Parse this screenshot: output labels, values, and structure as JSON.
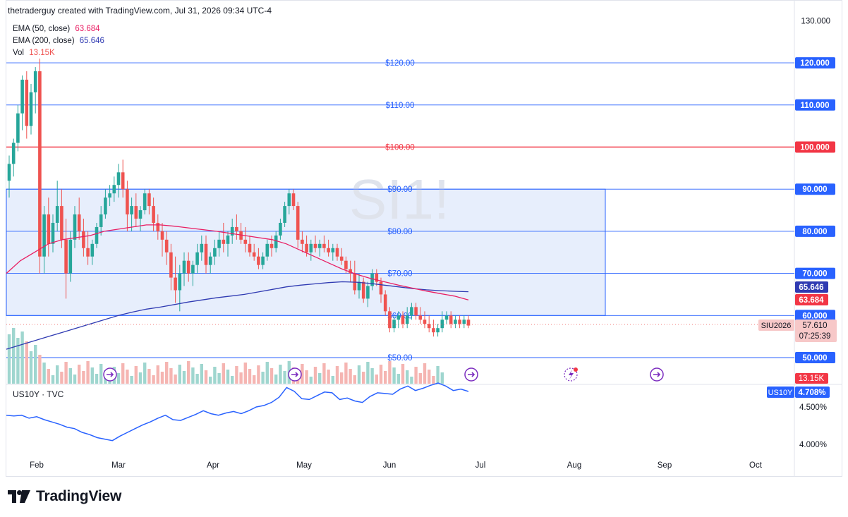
{
  "header": {
    "credit": "thetraderguy created with TradingView.com, Jul 31, 2026 09:34 UTC-4"
  },
  "watermark": "SI1!",
  "legend": {
    "ema50_label": "EMA (50, close)",
    "ema50_value": "63.684",
    "ema200_label": "EMA (200, close)",
    "ema200_value": "65.646",
    "vol_label": "Vol",
    "vol_value": "13.15K"
  },
  "sub_pane": {
    "legend": "US10Y · TVC",
    "symbol": "US10Y",
    "badge_value": "4.708%"
  },
  "price_badge": {
    "symbol": "SIU2026",
    "value": "57.610",
    "countdown": "07:25:39"
  },
  "footer": {
    "brand": "TradingView"
  },
  "colors": {
    "up": "#26a69a",
    "down": "#ef5350",
    "ema50": "#e91e63",
    "ema200": "#2f3ab2",
    "hline": "#2962ff",
    "red_line": "#f23645",
    "box_fill": "#e7eefc",
    "box_border": "#2962ff"
  },
  "chart_data": [
    {
      "type": "candlestick",
      "title": "SI1!",
      "x_axis": {
        "tick_labels": [
          "Feb",
          "Mar",
          "Apr",
          "May",
          "Jun",
          "Jul",
          "Aug",
          "Sep",
          "Oct"
        ]
      },
      "y_axis": {
        "tick_labels": [
          "130.000",
          "120.000",
          "110.000",
          "100.000",
          "90.000",
          "80.000",
          "70.000",
          "60.000",
          "50.000"
        ],
        "range": [
          47.5,
          130
        ]
      },
      "horizontal_levels": [
        {
          "value": 120,
          "label": "$120.00",
          "color": "#2962ff"
        },
        {
          "value": 110,
          "label": "$110.00",
          "color": "#2962ff"
        },
        {
          "value": 100,
          "label": "$100.00",
          "color": "#f23645"
        },
        {
          "value": 90,
          "label": "$90.00",
          "color": "#2962ff"
        },
        {
          "value": 80,
          "label": "$80.00",
          "color": "#2962ff"
        },
        {
          "value": 70,
          "label": "$70.00",
          "color": "#2962ff"
        },
        {
          "value": 60,
          "label": "$60.00",
          "color": "#2962ff"
        },
        {
          "value": 50,
          "label": "$50.00",
          "color": "#2962ff"
        }
      ],
      "range_box": {
        "from": "Jan 19",
        "to": "Aug 10",
        "low": 60,
        "high": 90
      },
      "ohlc": [
        [
          92,
          98,
          88,
          96
        ],
        [
          96,
          102,
          93,
          101
        ],
        [
          101,
          110,
          99,
          108
        ],
        [
          108,
          117,
          104,
          116
        ],
        [
          116,
          118,
          102,
          105
        ],
        [
          105,
          115,
          103,
          113
        ],
        [
          113,
          119,
          108,
          118
        ],
        [
          118,
          121,
          70,
          74
        ],
        [
          74,
          86,
          70,
          84
        ],
        [
          84,
          88,
          74,
          77
        ],
        [
          77,
          84,
          75,
          82
        ],
        [
          82,
          92,
          80,
          86
        ],
        [
          86,
          90,
          76,
          78
        ],
        [
          78,
          83,
          64,
          70
        ],
        [
          70,
          80,
          68,
          78
        ],
        [
          78,
          86,
          76,
          84
        ],
        [
          84,
          88,
          78,
          80
        ],
        [
          80,
          83,
          74,
          76
        ],
        [
          76,
          80,
          72,
          74
        ],
        [
          74,
          78,
          72,
          77
        ],
        [
          77,
          82,
          76,
          81
        ],
        [
          81,
          86,
          79,
          84
        ],
        [
          84,
          90,
          83,
          88
        ],
        [
          88,
          91,
          86,
          89
        ],
        [
          89,
          93,
          87,
          91
        ],
        [
          91,
          96,
          88,
          94
        ],
        [
          94,
          97,
          88,
          90
        ],
        [
          90,
          92,
          80,
          84
        ],
        [
          84,
          88,
          80,
          86
        ],
        [
          86,
          89,
          81,
          83
        ],
        [
          83,
          86,
          80,
          85
        ],
        [
          85,
          90,
          84,
          89
        ],
        [
          89,
          90,
          84,
          86
        ],
        [
          86,
          88,
          80,
          82
        ],
        [
          82,
          84,
          78,
          80
        ],
        [
          80,
          82,
          74,
          78
        ],
        [
          78,
          80,
          72,
          75
        ],
        [
          75,
          77,
          66,
          69
        ],
        [
          69,
          74,
          63,
          66
        ],
        [
          66,
          72,
          61,
          70
        ],
        [
          70,
          75,
          67,
          73
        ],
        [
          73,
          75,
          68,
          70
        ],
        [
          70,
          73,
          67,
          72
        ],
        [
          72,
          77,
          70,
          75
        ],
        [
          75,
          79,
          73,
          77
        ],
        [
          77,
          79,
          70,
          72
        ],
        [
          72,
          75,
          70,
          74
        ],
        [
          74,
          78,
          72,
          76
        ],
        [
          76,
          80,
          74,
          78
        ],
        [
          78,
          82,
          75,
          77
        ],
        [
          77,
          80,
          74,
          79
        ],
        [
          79,
          83,
          77,
          81
        ],
        [
          81,
          84,
          78,
          80
        ],
        [
          80,
          82,
          77,
          78
        ],
        [
          78,
          81,
          75,
          77
        ],
        [
          77,
          79,
          74,
          75
        ],
        [
          75,
          77,
          73,
          74
        ],
        [
          74,
          76,
          71,
          72
        ],
        [
          72,
          75,
          71,
          74
        ],
        [
          74,
          78,
          73,
          77
        ],
        [
          77,
          79,
          74,
          76
        ],
        [
          76,
          80,
          75,
          79
        ],
        [
          79,
          83,
          78,
          82
        ],
        [
          82,
          87,
          81,
          86
        ],
        [
          86,
          90,
          84,
          89
        ],
        [
          89,
          90,
          85,
          86
        ],
        [
          86,
          87,
          76,
          78
        ],
        [
          78,
          80,
          75,
          77
        ],
        [
          77,
          79,
          74,
          75
        ],
        [
          75,
          78,
          73,
          77
        ],
        [
          77,
          79,
          75,
          76
        ],
        [
          76,
          78,
          74,
          77
        ],
        [
          77,
          79,
          75,
          76
        ],
        [
          76,
          78,
          74,
          75
        ],
        [
          75,
          77,
          73,
          76
        ],
        [
          76,
          77,
          73,
          74
        ],
        [
          74,
          76,
          72,
          73
        ],
        [
          73,
          74,
          70,
          71
        ],
        [
          71,
          73,
          68,
          70
        ],
        [
          70,
          73,
          65,
          66
        ],
        [
          66,
          70,
          64,
          68
        ],
        [
          68,
          69,
          63,
          64
        ],
        [
          64,
          68,
          62,
          67
        ],
        [
          67,
          71,
          66,
          70
        ],
        [
          70,
          71,
          67,
          68
        ],
        [
          68,
          69,
          63,
          65
        ],
        [
          65,
          66,
          60,
          61
        ],
        [
          61,
          62,
          56,
          57
        ],
        [
          57,
          60,
          56,
          59
        ],
        [
          59,
          61,
          57,
          60
        ],
        [
          60,
          61,
          57,
          58
        ],
        [
          58,
          62,
          57,
          60
        ],
        [
          60,
          63,
          59,
          62
        ],
        [
          62,
          63,
          59,
          60
        ],
        [
          60,
          62,
          58,
          59
        ],
        [
          59,
          61,
          57,
          58
        ],
        [
          58,
          60,
          56,
          57
        ],
        [
          57,
          59,
          55,
          56
        ],
        [
          56,
          58,
          55,
          57
        ],
        [
          57,
          61,
          56,
          59
        ],
        [
          59,
          61,
          58,
          60
        ],
        [
          60,
          61,
          57,
          58
        ],
        [
          58,
          60,
          57,
          59
        ],
        [
          59,
          60,
          57,
          58
        ],
        [
          58,
          60,
          57,
          59
        ],
        [
          59,
          60,
          57,
          57.61
        ]
      ],
      "ema50": [
        70,
        73,
        75,
        77,
        78,
        78.5,
        79,
        80,
        80.5,
        81,
        81.5,
        81.5,
        81.2,
        80.8,
        80.4,
        80,
        79.5,
        79,
        78.5,
        78,
        77,
        75.5,
        74,
        72.5,
        71,
        69.8,
        68.8,
        68,
        67.2,
        66.5,
        65.8,
        65.2,
        64.6,
        63.68
      ],
      "ema200": [
        52,
        53,
        54,
        55,
        56,
        57,
        58,
        59,
        60,
        60.8,
        61.5,
        62,
        62.6,
        63.2,
        63.7,
        64.2,
        64.6,
        65,
        65.6,
        66.2,
        66.8,
        67.2,
        67.5,
        67.8,
        68,
        67.9,
        67.6,
        67.2,
        66.8,
        66.4,
        66.1,
        65.9,
        65.75,
        65.646
      ],
      "volume_bars": 100
    },
    {
      "type": "line",
      "series": [
        {
          "name": "US10Y",
          "values": [
            4.39,
            4.38,
            4.39,
            4.35,
            4.37,
            4.33,
            4.3,
            4.27,
            4.23,
            4.21,
            4.16,
            4.13,
            4.09,
            4.07,
            4.05,
            4.11,
            4.16,
            4.21,
            4.26,
            4.3,
            4.35,
            4.39,
            4.33,
            4.32,
            4.36,
            4.4,
            4.45,
            4.41,
            4.39,
            4.42,
            4.44,
            4.41,
            4.45,
            4.5,
            4.52,
            4.56,
            4.63,
            4.76,
            4.71,
            4.61,
            4.6,
            4.65,
            4.7,
            4.69,
            4.6,
            4.62,
            4.58,
            4.56,
            4.64,
            4.69,
            4.68,
            4.67,
            4.74,
            4.78,
            4.72,
            4.75,
            4.79,
            4.82,
            4.78,
            4.72,
            4.74,
            4.708
          ]
        }
      ],
      "y_axis": {
        "tick_labels": [
          "4.500%",
          "4.000%"
        ]
      },
      "last_value": "4.708%"
    }
  ]
}
